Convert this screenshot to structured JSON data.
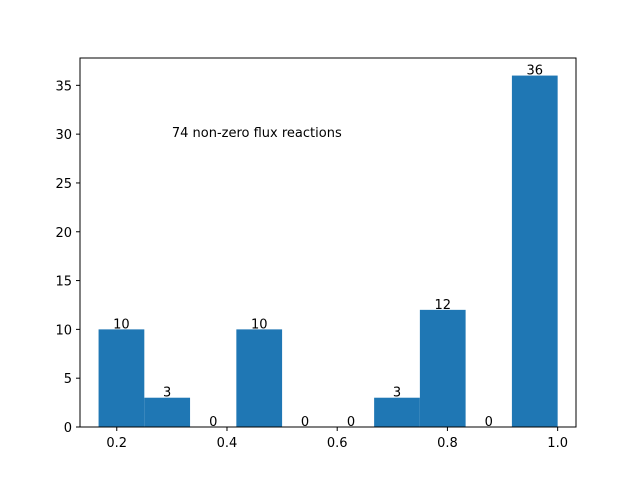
{
  "chart_data": {
    "type": "bar",
    "annotation": "74 non-zero flux reactions",
    "bar_color": "#1f77b4",
    "bins": [
      {
        "x0": 0.167,
        "x1": 0.25,
        "value": 10,
        "label": "10"
      },
      {
        "x0": 0.25,
        "x1": 0.333,
        "value": 3,
        "label": "3"
      },
      {
        "x0": 0.333,
        "x1": 0.417,
        "value": 0,
        "label": "0"
      },
      {
        "x0": 0.417,
        "x1": 0.5,
        "value": 10,
        "label": "10"
      },
      {
        "x0": 0.5,
        "x1": 0.583,
        "value": 0,
        "label": "0"
      },
      {
        "x0": 0.583,
        "x1": 0.667,
        "value": 0,
        "label": "0"
      },
      {
        "x0": 0.667,
        "x1": 0.75,
        "value": 3,
        "label": "3"
      },
      {
        "x0": 0.75,
        "x1": 0.833,
        "value": 12,
        "label": "12"
      },
      {
        "x0": 0.833,
        "x1": 0.917,
        "value": 0,
        "label": "0"
      },
      {
        "x0": 0.917,
        "x1": 1.0,
        "value": 36,
        "label": "36"
      }
    ],
    "xlim": [
      0.1333,
      1.0333
    ],
    "ylim": [
      0,
      37.8
    ],
    "xticks": [
      {
        "value": 0.2,
        "label": "0.2"
      },
      {
        "value": 0.4,
        "label": "0.4"
      },
      {
        "value": 0.6,
        "label": "0.6"
      },
      {
        "value": 0.8,
        "label": "0.8"
      },
      {
        "value": 1.0,
        "label": "1.0"
      }
    ],
    "yticks": [
      {
        "value": 0,
        "label": "0"
      },
      {
        "value": 5,
        "label": "5"
      },
      {
        "value": 10,
        "label": "10"
      },
      {
        "value": 15,
        "label": "15"
      },
      {
        "value": 20,
        "label": "20"
      },
      {
        "value": 25,
        "label": "25"
      },
      {
        "value": 30,
        "label": "30"
      },
      {
        "value": 35,
        "label": "35"
      }
    ],
    "annotation_pos": {
      "x": 0.3,
      "y": 30
    }
  }
}
